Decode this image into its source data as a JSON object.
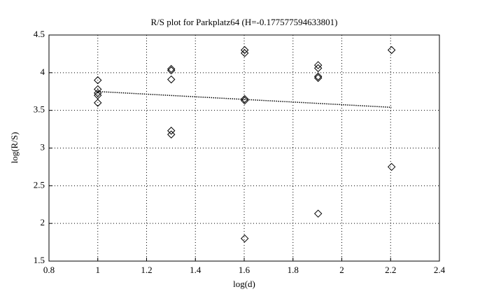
{
  "chart_data": {
    "type": "scatter",
    "title": "R/S plot for Parkplatz64 (H=-0.177577594633801)",
    "x_label": "log(d)",
    "y_label": "log(R/S)",
    "series": [
      {
        "marker": "diamond",
        "color": "#000000",
        "x": [
          1,
          1,
          1,
          1,
          1,
          1.301,
          1.301,
          1.301,
          1.301,
          1.301,
          1.602,
          1.602,
          1.602,
          1.602,
          1.602,
          1.903,
          1.903,
          1.903,
          1.903,
          1.903,
          2.204,
          2.204
        ],
        "values": [
          3.9,
          3.78,
          3.73,
          3.7,
          3.6,
          4.05,
          4.03,
          3.91,
          3.23,
          3.18,
          4.3,
          4.26,
          3.65,
          3.63,
          1.8,
          4.1,
          4.06,
          3.95,
          3.93,
          2.13,
          4.3,
          2.75
        ]
      },
      {
        "line_style": "dotted",
        "color": "#000000",
        "x": [
          1,
          2.204
        ],
        "values": [
          3.75,
          3.54
        ]
      }
    ],
    "xlim": [
      0.8,
      2.4
    ],
    "xticks": [
      0.8,
      1,
      1.2,
      1.4,
      1.6,
      1.8,
      2,
      2.2,
      2.4
    ],
    "ylim": [
      1.5,
      4.5
    ],
    "yticks": [
      1.5,
      2,
      2.5,
      3,
      3.5,
      4,
      4.5
    ],
    "grid": true
  }
}
